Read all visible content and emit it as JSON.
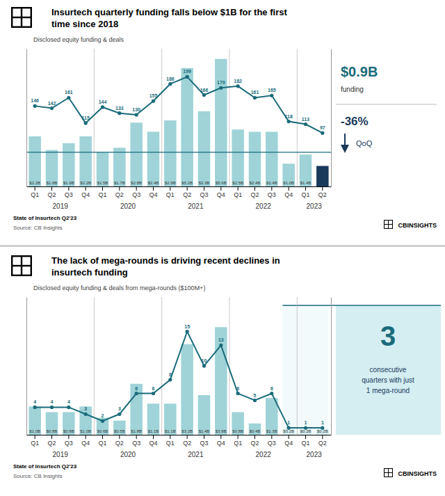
{
  "chart_data": [
    {
      "type": "bar",
      "title": "Insurtech quarterly funding falls below $1B for the first\ntime since 2018",
      "subtitle": "Disclosed equity funding & deals",
      "categories": [
        "Q1",
        "Q2",
        "Q3",
        "Q4",
        "Q1",
        "Q2",
        "Q3",
        "Q4",
        "Q1",
        "Q2",
        "Q3",
        "Q4",
        "Q1",
        "Q2",
        "Q3",
        "Q4",
        "Q1",
        "Q2"
      ],
      "years": [
        "2019",
        "2020",
        "2021",
        "2022",
        "2023"
      ],
      "series": [
        {
          "type": "bar",
          "colors": [
            "#9fd3d8",
            "#9fd3d8",
            "#9fd3d8",
            "#9fd3d8",
            "#9fd3d8",
            "#9fd3d8",
            "#9fd3d8",
            "#9fd3d8",
            "#9fd3d8",
            "#9fd3d8",
            "#9fd3d8",
            "#9fd3d8",
            "#9fd3d8",
            "#9fd3d8",
            "#9fd3d8",
            "#9fd3d8",
            "#9fd3d8",
            "#1a3a5c"
          ],
          "values": [
            2.2,
            1.6,
            1.9,
            2.2,
            1.5,
            1.7,
            2.8,
            2.4,
            2.9,
            5.2,
            3.3,
            5.6,
            2.5,
            2.4,
            2.4,
            1.0,
            1.4,
            0.9
          ],
          "value_labels": [
            "$2.2B",
            "$1.6B",
            "$1.9B",
            "$2.2B",
            "$1.5B",
            "$1.7B",
            "$2.8B",
            "$2.4B",
            "$2.9B",
            "$5.2B",
            "$3.3B",
            "$5.6B",
            "$2.5B",
            "$2.4B",
            "$2.4B",
            "$1.0B",
            "$1.4B",
            null
          ]
        },
        {
          "type": "line",
          "axis": "y2",
          "color": "#1a6b7a",
          "marker": "circle",
          "values": [
            146,
            142,
            161,
            115,
            144,
            133,
            130,
            155,
            186,
            199,
            166,
            179,
            182,
            161,
            165,
            118,
            113,
            97
          ]
        }
      ],
      "ylim": [
        0,
        6.048
      ],
      "y2lim": [
        0,
        250
      ],
      "reference_line": 1.5,
      "data_labels": true,
      "tick_labels": "x",
      "grid": false,
      "side_panel": {
        "value": "$0.9B",
        "value_label": "funding",
        "change": "-36%",
        "change_label": "QoQ"
      },
      "footer": [
        "State of Insurtech Q2'23",
        "Source: CB Insights"
      ],
      "logo": "CBINSIGHTS"
    },
    {
      "type": "bar",
      "title": "The lack of mega-rounds is driving recent declines in\ninsurtech funding",
      "subtitle": "Disclosed equity funding & deals from mega-rounds ($100M+)",
      "categories": [
        "Q1",
        "Q2",
        "Q3",
        "Q4",
        "Q1",
        "Q2",
        "Q3",
        "Q4",
        "Q1",
        "Q2",
        "Q3",
        "Q4",
        "Q1",
        "Q2",
        "Q3",
        "Q4",
        "Q1",
        "Q2"
      ],
      "years": [
        "2019",
        "2020",
        "2021",
        "2022",
        "2023"
      ],
      "series": [
        {
          "type": "bar",
          "colors": [
            "#9fd3d8",
            "#9fd3d8",
            "#9fd3d8",
            "#9fd3d8",
            "#9fd3d8",
            "#9fd3d8",
            "#9fd3d8",
            "#9fd3d8",
            "#9fd3d8",
            "#9fd3d8",
            "#9fd3d8",
            "#9fd3d8",
            "#9fd3d8",
            "#9fd3d8",
            "#9fd3d8",
            "#d4eef1",
            "#d4eef1",
            "#d4eef1"
          ],
          "values": [
            1.0,
            0.8,
            0.8,
            1.0,
            0.6,
            0.5,
            1.8,
            1.1,
            1.1,
            3.2,
            1.4,
            3.8,
            0.8,
            0.4,
            1.3,
            0.2,
            0.2,
            0.2
          ],
          "value_labels": [
            "$1.0B",
            "$0.8B",
            "$0.8B",
            "$1.0B",
            "$0.6B",
            "$0.5B",
            "$1.8B",
            "$1.1B",
            "$1.1B",
            "$3.2B",
            "$1.4B",
            "$3.8B",
            "$0.8B",
            "$0.4B",
            "$1.3B",
            "$0.2B",
            "$0.2B",
            "$0.2B"
          ]
        },
        {
          "type": "line",
          "axis": "y2",
          "color": "#1a6b7a",
          "marker": "circle",
          "values": [
            4,
            4,
            4,
            3,
            2,
            3,
            6,
            6,
            8,
            15,
            10,
            13,
            6,
            5,
            6,
            1,
            1,
            1
          ]
        }
      ],
      "ylim": [
        0,
        4.864
      ],
      "y2lim": [
        0,
        20
      ],
      "data_labels": true,
      "tick_labels": "x",
      "grid": false,
      "side_box": {
        "value": "3",
        "text": "consecutive\nquarters with just\n1 mega-round"
      },
      "footer": [
        "State of Insurtech Q2'23",
        "Source: CB Insights"
      ],
      "logo": "CBINSIGHTS"
    }
  ]
}
